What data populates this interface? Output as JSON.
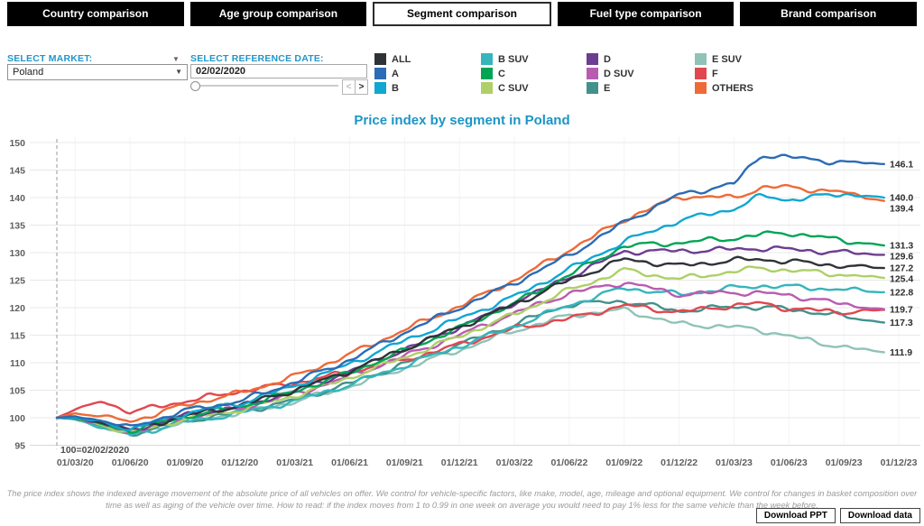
{
  "tabs": [
    {
      "label": "Country comparison",
      "active": false
    },
    {
      "label": "Age group comparison",
      "active": false
    },
    {
      "label": "Segment comparison",
      "active": true
    },
    {
      "label": "Fuel type comparison",
      "active": false
    },
    {
      "label": "Brand comparison",
      "active": false
    }
  ],
  "controls": {
    "market_label": "SELECT MARKET:",
    "market_value": "Poland",
    "date_label": "SELECT REFERENCE DATE:",
    "date_value": "02/02/2020",
    "slider_prev": "<",
    "slider_next": ">"
  },
  "legend": [
    {
      "label": "ALL",
      "color": "#2f3338"
    },
    {
      "label": "A",
      "color": "#2a6cb5"
    },
    {
      "label": "B",
      "color": "#10a7d0"
    },
    {
      "label": "B SUV",
      "color": "#35b5bc"
    },
    {
      "label": "C",
      "color": "#00a455"
    },
    {
      "label": "C SUV",
      "color": "#aed066"
    },
    {
      "label": "D",
      "color": "#6d3d91"
    },
    {
      "label": "D SUV",
      "color": "#b95cb0"
    },
    {
      "label": "E",
      "color": "#43918c"
    },
    {
      "label": "E SUV",
      "color": "#8fc3b7"
    },
    {
      "label": "F",
      "color": "#e0474f"
    },
    {
      "label": "OTHERS",
      "color": "#ee6a37"
    }
  ],
  "chart_data": {
    "type": "line",
    "title": "Price index by segment in Poland",
    "title_color": "#1b95c6",
    "ylim": [
      95,
      150
    ],
    "y_ticks": [
      95,
      100,
      105,
      110,
      115,
      120,
      125,
      130,
      135,
      140,
      145,
      150
    ],
    "months_span": [
      0,
      46
    ],
    "x_ticks": [
      {
        "m": 1,
        "label": "01/03/20"
      },
      {
        "m": 4,
        "label": "01/06/20"
      },
      {
        "m": 7,
        "label": "01/09/20"
      },
      {
        "m": 10,
        "label": "01/12/20"
      },
      {
        "m": 13,
        "label": "01/03/21"
      },
      {
        "m": 16,
        "label": "01/06/21"
      },
      {
        "m": 19,
        "label": "01/09/21"
      },
      {
        "m": 22,
        "label": "01/12/21"
      },
      {
        "m": 25,
        "label": "01/03/22"
      },
      {
        "m": 28,
        "label": "01/06/22"
      },
      {
        "m": 31,
        "label": "01/09/22"
      },
      {
        "m": 34,
        "label": "01/12/22"
      },
      {
        "m": 37,
        "label": "01/03/23"
      },
      {
        "m": 40,
        "label": "01/06/23"
      },
      {
        "m": 43,
        "label": "01/09/23"
      },
      {
        "m": 46,
        "label": "01/12/23"
      }
    ],
    "reference": {
      "month": 0,
      "date": "02/02/2020",
      "annotation": "100=02/02/2020"
    },
    "sample_months": [
      0,
      1,
      2.5,
      4,
      7,
      10,
      13,
      16,
      19,
      22,
      25,
      28,
      31,
      34,
      37,
      38.5,
      40,
      43,
      45.2
    ],
    "series": [
      {
        "name": "E SUV",
        "color": "#8fc3b7",
        "end_label": "111.9",
        "values": [
          100,
          99.7,
          98.4,
          96.9,
          99.3,
          100.9,
          102.9,
          105.7,
          109,
          112.3,
          115.8,
          118.6,
          119.6,
          117,
          116.5,
          115.9,
          114.8,
          112.8,
          111.9
        ]
      },
      {
        "name": "E",
        "color": "#43918c",
        "end_label": "117.3",
        "values": [
          100,
          99.8,
          98.5,
          97,
          99.4,
          101,
          103.2,
          106.2,
          109.8,
          113.3,
          117,
          120.6,
          121.2,
          119.4,
          120.2,
          120,
          119.8,
          118.4,
          117.3
        ]
      },
      {
        "name": "F",
        "color": "#e0474f",
        "end_label": null,
        "values": [
          100,
          101.5,
          103,
          101,
          103,
          104.8,
          106.3,
          108.3,
          110.5,
          113.3,
          116.2,
          118,
          120.4,
          119.2,
          120.4,
          120.8,
          119.8,
          119.2,
          119.6
        ]
      },
      {
        "name": "B SUV",
        "color": "#35b5bc",
        "end_label": "122.8",
        "values": [
          100,
          99.8,
          98.2,
          96.8,
          99.2,
          100.8,
          103,
          106,
          109.5,
          113,
          116.6,
          120.5,
          123.6,
          122.4,
          123.6,
          124,
          123.8,
          123.3,
          122.8
        ]
      },
      {
        "name": "D SUV",
        "color": "#b95cb0",
        "end_label": "119.7",
        "values": [
          100,
          99.9,
          98.7,
          97.4,
          100,
          101.7,
          104.3,
          107.5,
          111.2,
          115,
          119,
          122.6,
          124.6,
          122.4,
          122.8,
          122.6,
          122.3,
          120.6,
          119.7
        ]
      },
      {
        "name": "C SUV",
        "color": "#aed066",
        "end_label": "125.4",
        "values": [
          100,
          99.9,
          98.6,
          97.2,
          99.8,
          101.4,
          104,
          107.3,
          111,
          114.8,
          118.8,
          123.2,
          126.8,
          125.2,
          126.6,
          127.2,
          126.8,
          126,
          125.4
        ]
      },
      {
        "name": "D",
        "color": "#6d3d91",
        "end_label": "129.6",
        "values": [
          100,
          100,
          98.9,
          97.7,
          100.4,
          102,
          104.9,
          108.4,
          112.4,
          116.5,
          120.9,
          125.6,
          130.2,
          130.3,
          130.6,
          130.8,
          130.6,
          130,
          129.6
        ]
      },
      {
        "name": "C",
        "color": "#00a455",
        "end_label": "131.3",
        "values": [
          100,
          100,
          98.8,
          97.6,
          100.2,
          102,
          104.8,
          108.2,
          112.2,
          116.3,
          120.8,
          126,
          131.2,
          131.8,
          132.6,
          133.3,
          133.6,
          132.2,
          131.3
        ]
      },
      {
        "name": "ALL",
        "color": "#2f3338",
        "end_label": "127.2",
        "values": [
          100,
          100,
          99.2,
          97.8,
          100.3,
          102.2,
          105,
          108.5,
          112.5,
          116.5,
          120.6,
          125,
          128.8,
          127.6,
          128.6,
          128.8,
          128.4,
          127.6,
          127.2
        ]
      },
      {
        "name": "OTHERS",
        "color": "#ee6a37",
        "end_label": "139.4",
        "values": [
          100,
          100.8,
          100.3,
          99.3,
          102.3,
          104.5,
          107.5,
          111.5,
          116,
          120.3,
          125,
          130.5,
          136,
          140.2,
          140,
          141.8,
          141.9,
          140.9,
          139.4
        ]
      },
      {
        "name": "B",
        "color": "#10a7d0",
        "end_label": "140.0",
        "values": [
          100,
          100,
          99.2,
          97.9,
          100.8,
          102.6,
          105.8,
          109.8,
          114,
          118,
          122,
          127,
          132,
          135.8,
          138,
          140.3,
          139.6,
          140.7,
          140.0
        ]
      },
      {
        "name": "A",
        "color": "#2a6cb5",
        "end_label": "146.1",
        "values": [
          100,
          100.2,
          99.5,
          98.2,
          101.3,
          103,
          106.5,
          110.5,
          115.5,
          120,
          124.5,
          129.5,
          135.5,
          140.5,
          142.5,
          147.8,
          147.3,
          146.4,
          146.1
        ]
      }
    ]
  },
  "footnote": "The price index shows the indexed average movement of the absolute price of all vehicles on offer. We control for vehicle-specific factors, like make, model, age, mileage and optional equipment. We control for changes in basket composition over time as well as aging of the vehicle over time. How to read: if the index moves from 1 to 0.99 in one week on average you would need to pay 1% less for the same vehicle than the week before.",
  "downloads": {
    "ppt": "Download PPT",
    "data": "Download data"
  }
}
